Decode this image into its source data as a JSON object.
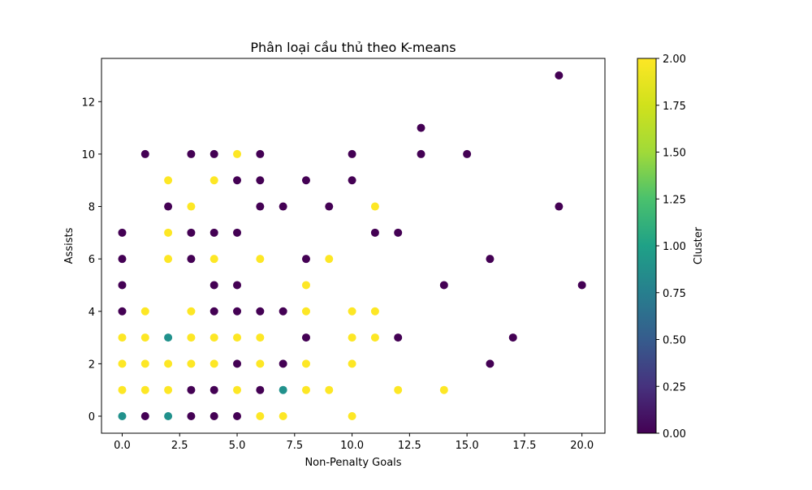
{
  "chart_data": {
    "type": "scatter",
    "title": "Phân loại cầu thủ theo K-means",
    "xlabel": "Non-Penalty Goals",
    "ylabel": "Assists",
    "xlim": [
      -0.9,
      21.0
    ],
    "ylim": [
      -0.65,
      13.65
    ],
    "xticks": [
      "0.0",
      "2.5",
      "5.0",
      "7.5",
      "10.0",
      "12.5",
      "15.0",
      "17.5",
      "20.0"
    ],
    "xtick_values": [
      0,
      2.5,
      5,
      7.5,
      10,
      12.5,
      15,
      17.5,
      20
    ],
    "yticks": [
      "0",
      "2",
      "4",
      "6",
      "8",
      "10",
      "12"
    ],
    "ytick_values": [
      0,
      2,
      4,
      6,
      8,
      10,
      12
    ],
    "grid": false,
    "colorbar": {
      "label": "Cluster",
      "range": [
        0,
        2
      ],
      "ticks": [
        "0.00",
        "0.25",
        "0.50",
        "0.75",
        "1.00",
        "1.25",
        "1.50",
        "1.75",
        "2.00"
      ],
      "tick_values": [
        0,
        0.25,
        0.5,
        0.75,
        1,
        1.25,
        1.5,
        1.75,
        2
      ],
      "colormap": "viridis"
    },
    "colors": {
      "0": "#440154",
      "1": "#21918c",
      "2": "#fde725"
    },
    "points": [
      [
        0,
        0,
        1
      ],
      [
        0,
        1,
        2
      ],
      [
        0,
        2,
        2
      ],
      [
        0,
        3,
        2
      ],
      [
        0,
        4,
        0
      ],
      [
        0,
        5,
        0
      ],
      [
        0,
        6,
        0
      ],
      [
        0,
        7,
        0
      ],
      [
        1,
        0,
        0
      ],
      [
        1,
        1,
        2
      ],
      [
        1,
        2,
        2
      ],
      [
        1,
        3,
        2
      ],
      [
        1,
        4,
        2
      ],
      [
        1,
        10,
        0
      ],
      [
        2,
        0,
        1
      ],
      [
        2,
        1,
        2
      ],
      [
        2,
        2,
        2
      ],
      [
        2,
        3,
        1
      ],
      [
        2,
        6,
        2
      ],
      [
        2,
        7,
        2
      ],
      [
        2,
        8,
        0
      ],
      [
        2,
        9,
        2
      ],
      [
        3,
        0,
        0
      ],
      [
        3,
        1,
        0
      ],
      [
        3,
        2,
        2
      ],
      [
        3,
        3,
        2
      ],
      [
        3,
        4,
        2
      ],
      [
        3,
        6,
        0
      ],
      [
        3,
        7,
        0
      ],
      [
        3,
        8,
        2
      ],
      [
        3,
        10,
        0
      ],
      [
        4,
        0,
        0
      ],
      [
        4,
        1,
        0
      ],
      [
        4,
        2,
        2
      ],
      [
        4,
        3,
        2
      ],
      [
        4,
        4,
        0
      ],
      [
        4,
        5,
        0
      ],
      [
        4,
        6,
        2
      ],
      [
        4,
        7,
        0
      ],
      [
        4,
        9,
        2
      ],
      [
        4,
        10,
        0
      ],
      [
        5,
        0,
        0
      ],
      [
        5,
        1,
        2
      ],
      [
        5,
        2,
        0
      ],
      [
        5,
        3,
        2
      ],
      [
        5,
        4,
        0
      ],
      [
        5,
        5,
        0
      ],
      [
        5,
        7,
        0
      ],
      [
        5,
        9,
        0
      ],
      [
        5,
        10,
        2
      ],
      [
        6,
        0,
        2
      ],
      [
        6,
        1,
        0
      ],
      [
        6,
        2,
        2
      ],
      [
        6,
        3,
        2
      ],
      [
        6,
        4,
        0
      ],
      [
        6,
        6,
        2
      ],
      [
        6,
        8,
        0
      ],
      [
        6,
        9,
        0
      ],
      [
        6,
        10,
        0
      ],
      [
        7,
        0,
        2
      ],
      [
        7,
        1,
        1
      ],
      [
        7,
        2,
        0
      ],
      [
        7,
        4,
        0
      ],
      [
        7,
        8,
        0
      ],
      [
        8,
        1,
        2
      ],
      [
        8,
        2,
        2
      ],
      [
        8,
        3,
        0
      ],
      [
        8,
        4,
        2
      ],
      [
        8,
        5,
        2
      ],
      [
        8,
        6,
        0
      ],
      [
        8,
        9,
        0
      ],
      [
        9,
        1,
        2
      ],
      [
        9,
        6,
        2
      ],
      [
        9,
        8,
        0
      ],
      [
        10,
        0,
        2
      ],
      [
        10,
        2,
        2
      ],
      [
        10,
        3,
        2
      ],
      [
        10,
        4,
        2
      ],
      [
        10,
        9,
        0
      ],
      [
        10,
        10,
        0
      ],
      [
        11,
        3,
        2
      ],
      [
        11,
        4,
        2
      ],
      [
        11,
        7,
        0
      ],
      [
        11,
        8,
        2
      ],
      [
        12,
        1,
        2
      ],
      [
        12,
        3,
        0
      ],
      [
        12,
        7,
        0
      ],
      [
        13,
        10,
        0
      ],
      [
        13,
        11,
        0
      ],
      [
        14,
        1,
        2
      ],
      [
        14,
        5,
        0
      ],
      [
        15,
        10,
        0
      ],
      [
        16,
        2,
        0
      ],
      [
        16,
        6,
        0
      ],
      [
        17,
        3,
        0
      ],
      [
        19,
        8,
        0
      ],
      [
        19,
        13,
        0
      ],
      [
        20,
        5,
        0
      ]
    ]
  }
}
